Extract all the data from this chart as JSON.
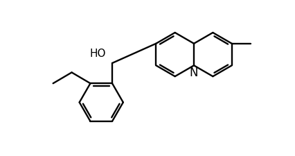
{
  "bg_color": "#ffffff",
  "line_color": "#000000",
  "line_width": 1.7,
  "font_size_label": 11,
  "figsize": [
    4.27,
    2.25
  ],
  "dpi": 100,
  "xlim": [
    -0.5,
    5.0
  ],
  "ylim": [
    -2.2,
    1.6
  ]
}
